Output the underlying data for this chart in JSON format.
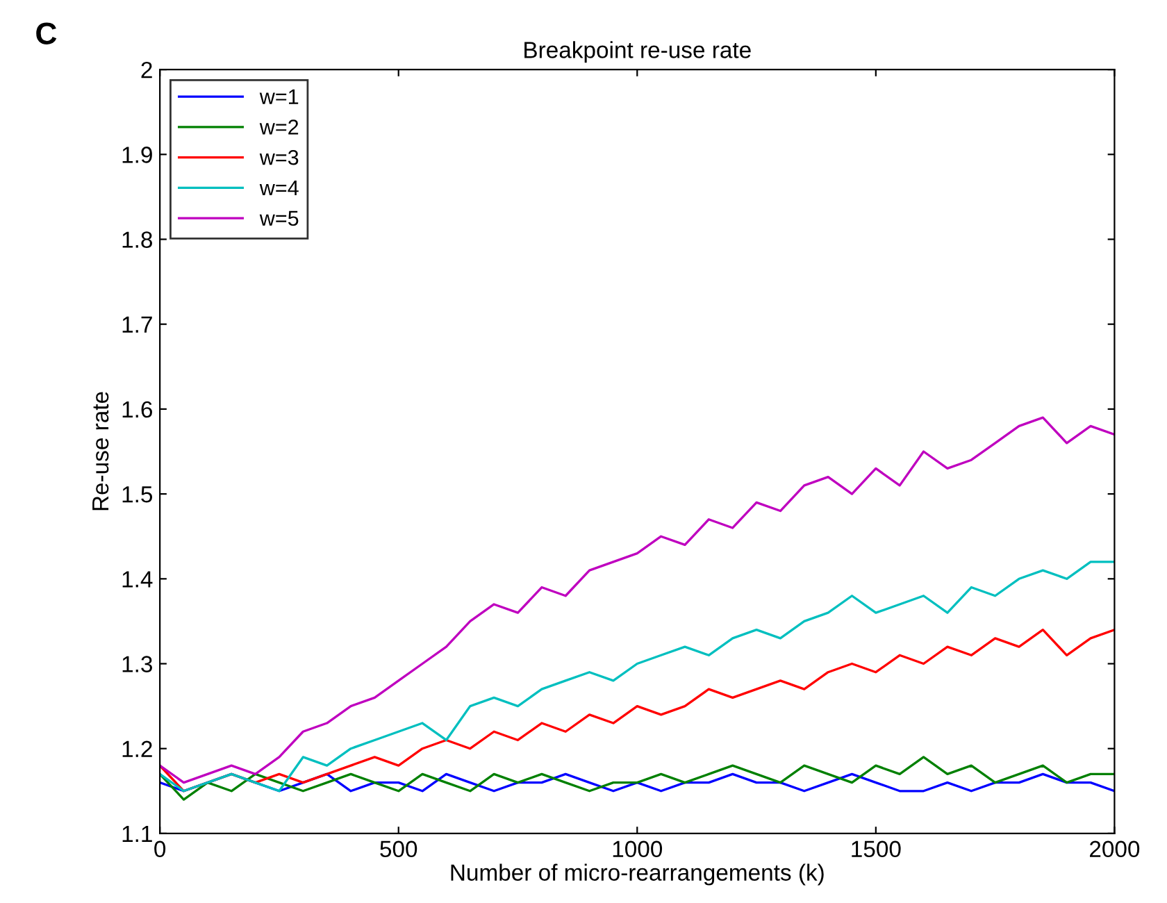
{
  "chart_data": {
    "type": "line",
    "title": "Breakpoint re-use rate",
    "xlabel": "Number of micro-rearrangements (k)",
    "ylabel": "Re-use rate",
    "annotations": [
      "C"
    ],
    "x": [
      0,
      50,
      100,
      150,
      200,
      250,
      300,
      350,
      400,
      450,
      500,
      550,
      600,
      650,
      700,
      750,
      800,
      850,
      900,
      950,
      1000,
      1050,
      1100,
      1150,
      1200,
      1250,
      1300,
      1350,
      1400,
      1450,
      1500,
      1550,
      1600,
      1650,
      1700,
      1750,
      1800,
      1850,
      1900,
      1950,
      2000
    ],
    "xlim": [
      0,
      2000
    ],
    "xticks": [
      0,
      500,
      1000,
      1500,
      2000
    ],
    "ylim": [
      1.1,
      2
    ],
    "yticks": [
      1.1,
      1.2,
      1.3,
      1.4,
      1.5,
      1.6,
      1.7,
      1.8,
      1.9,
      2
    ],
    "grid": false,
    "legend": "top left",
    "marker": "none",
    "line_style": "solid",
    "series": [
      {
        "name": "w=1",
        "color": "#0000ff",
        "values": [
          1.16,
          1.15,
          1.16,
          1.17,
          1.16,
          1.15,
          1.16,
          1.17,
          1.15,
          1.16,
          1.16,
          1.15,
          1.17,
          1.16,
          1.15,
          1.16,
          1.16,
          1.17,
          1.16,
          1.15,
          1.16,
          1.15,
          1.16,
          1.16,
          1.17,
          1.16,
          1.16,
          1.15,
          1.16,
          1.17,
          1.16,
          1.15,
          1.15,
          1.16,
          1.15,
          1.16,
          1.16,
          1.17,
          1.16,
          1.16,
          1.15
        ]
      },
      {
        "name": "w=2",
        "color": "#008000",
        "values": [
          1.17,
          1.14,
          1.16,
          1.15,
          1.17,
          1.16,
          1.15,
          1.16,
          1.17,
          1.16,
          1.15,
          1.17,
          1.16,
          1.15,
          1.17,
          1.16,
          1.17,
          1.16,
          1.15,
          1.16,
          1.16,
          1.17,
          1.16,
          1.17,
          1.18,
          1.17,
          1.16,
          1.18,
          1.17,
          1.16,
          1.18,
          1.17,
          1.19,
          1.17,
          1.18,
          1.16,
          1.17,
          1.18,
          1.16,
          1.17,
          1.17
        ]
      },
      {
        "name": "w=3",
        "color": "#ff0000",
        "values": [
          1.18,
          1.15,
          1.16,
          1.17,
          1.16,
          1.17,
          1.16,
          1.17,
          1.18,
          1.19,
          1.18,
          1.2,
          1.21,
          1.2,
          1.22,
          1.21,
          1.23,
          1.22,
          1.24,
          1.23,
          1.25,
          1.24,
          1.25,
          1.27,
          1.26,
          1.27,
          1.28,
          1.27,
          1.29,
          1.3,
          1.29,
          1.31,
          1.3,
          1.32,
          1.31,
          1.33,
          1.32,
          1.34,
          1.31,
          1.33,
          1.34
        ]
      },
      {
        "name": "w=4",
        "color": "#00bfbf",
        "values": [
          1.17,
          1.15,
          1.16,
          1.17,
          1.16,
          1.15,
          1.19,
          1.18,
          1.2,
          1.21,
          1.22,
          1.23,
          1.21,
          1.25,
          1.26,
          1.25,
          1.27,
          1.28,
          1.29,
          1.28,
          1.3,
          1.31,
          1.32,
          1.31,
          1.33,
          1.34,
          1.33,
          1.35,
          1.36,
          1.38,
          1.36,
          1.37,
          1.38,
          1.36,
          1.39,
          1.38,
          1.4,
          1.41,
          1.4,
          1.42,
          1.42
        ]
      },
      {
        "name": "w=5",
        "color": "#bf00bf",
        "values": [
          1.18,
          1.16,
          1.17,
          1.18,
          1.17,
          1.19,
          1.22,
          1.23,
          1.25,
          1.26,
          1.28,
          1.3,
          1.32,
          1.35,
          1.37,
          1.36,
          1.39,
          1.38,
          1.41,
          1.42,
          1.43,
          1.45,
          1.44,
          1.47,
          1.46,
          1.49,
          1.48,
          1.51,
          1.52,
          1.5,
          1.53,
          1.51,
          1.55,
          1.53,
          1.54,
          1.56,
          1.58,
          1.59,
          1.56,
          1.58,
          1.57
        ]
      }
    ]
  }
}
